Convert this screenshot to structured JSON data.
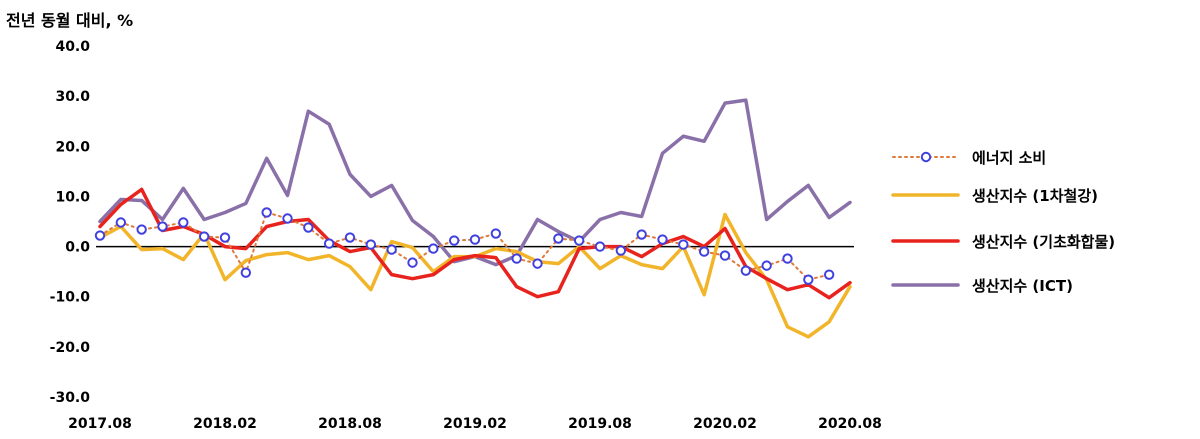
{
  "chart_data": {
    "type": "line",
    "ylabel": "전년 동월 대비, %",
    "ylim": [
      -30,
      40
    ],
    "yticks": [
      40,
      30,
      20,
      10,
      0,
      -10,
      -20,
      -30
    ],
    "ytick_labels": [
      "40.0",
      "30.0",
      "20.0",
      "10.0",
      "0.0",
      "-10.0",
      "-20.0",
      "-30.0"
    ],
    "xtick_labels": [
      "2017.08",
      "2018.02",
      "2018.08",
      "2019.02",
      "2019.08",
      "2020.02",
      "2020.08"
    ],
    "xtick_index": [
      0,
      6,
      12,
      18,
      24,
      30,
      36
    ],
    "grid": false,
    "legend_position": "right",
    "series": [
      {
        "name": "에너지 소비",
        "color": "#e07a3a",
        "marker_color": "#4040e0",
        "style": "dotted",
        "values": [
          2.2,
          4.8,
          3.4,
          4.0,
          4.8,
          2.0,
          1.8,
          -5.2,
          6.8,
          5.6,
          3.8,
          0.6,
          1.8,
          0.4,
          -0.6,
          -3.2,
          -0.4,
          1.2,
          1.4,
          2.6,
          -2.4,
          -3.4,
          1.6,
          1.2,
          0.0,
          -0.8,
          2.4,
          1.4,
          0.4,
          -1.0,
          -1.8,
          -4.8,
          -3.8,
          -2.4,
          -6.6,
          -5.6
        ]
      },
      {
        "name": "생산지수 (1차철강)",
        "color": "#f2b52a",
        "style": "solid",
        "values": [
          1.8,
          4.0,
          -0.6,
          -0.4,
          -2.6,
          2.6,
          -6.6,
          -2.8,
          -1.6,
          -1.2,
          -2.6,
          -1.8,
          -4.0,
          -8.6,
          1.0,
          -0.2,
          -5.0,
          -2.0,
          -2.0,
          -0.4,
          -1.0,
          -3.0,
          -3.4,
          0.0,
          -4.4,
          -1.8,
          -3.6,
          -4.4,
          0.0,
          -9.6,
          6.4,
          -1.2,
          -6.6,
          -16.0,
          -18.0,
          -15.0,
          -8.0
        ]
      },
      {
        "name": "생산지수 (기초화합물)",
        "color": "#e8231e",
        "style": "solid",
        "values": [
          4.0,
          8.4,
          11.4,
          3.2,
          4.0,
          2.4,
          0.0,
          -0.4,
          4.0,
          5.0,
          5.4,
          1.2,
          -1.0,
          -0.2,
          -5.6,
          -6.4,
          -5.6,
          -2.6,
          -1.8,
          -2.2,
          -8.0,
          -10.0,
          -9.0,
          -0.4,
          0.0,
          0.0,
          -2.0,
          0.6,
          2.0,
          0.0,
          3.6,
          -4.0,
          -6.4,
          -8.6,
          -7.6,
          -10.2,
          -7.2
        ]
      },
      {
        "name": "생산지수 (ICT)",
        "color": "#8a70a8",
        "style": "solid",
        "values": [
          5.0,
          9.4,
          9.2,
          5.4,
          11.6,
          5.4,
          6.8,
          8.6,
          17.6,
          10.2,
          27.0,
          24.4,
          14.4,
          10.0,
          12.2,
          5.2,
          2.0,
          -3.0,
          -2.0,
          -3.6,
          -1.8,
          5.4,
          3.0,
          1.0,
          5.4,
          6.8,
          6.0,
          18.6,
          22.0,
          21.0,
          28.6,
          29.2,
          5.4,
          9.0,
          12.2,
          5.8,
          8.8
        ]
      }
    ]
  }
}
